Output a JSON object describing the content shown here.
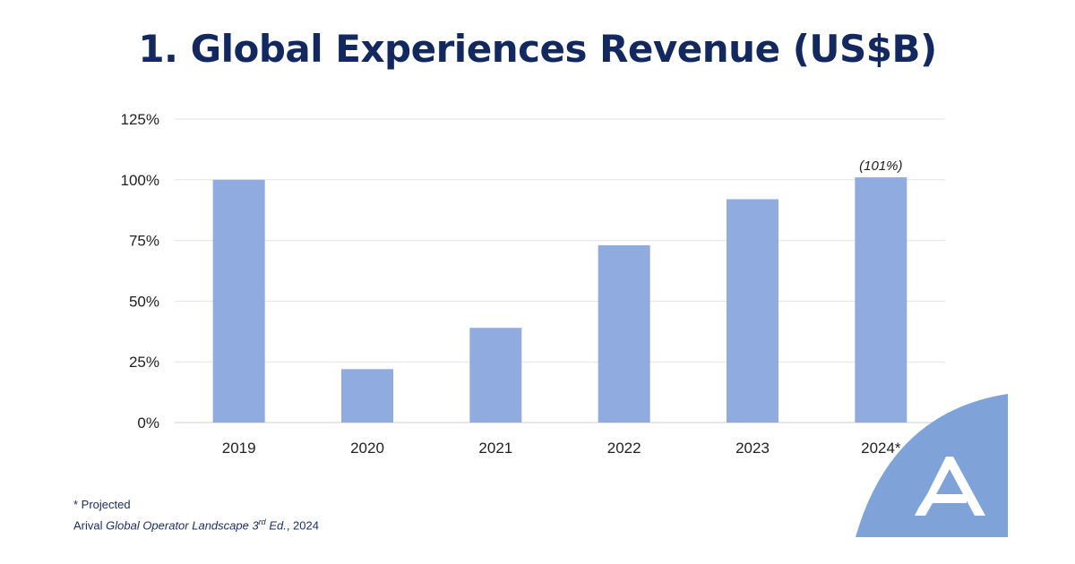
{
  "title": "1. Global Experiences Revenue (US$B)",
  "chart_data": {
    "type": "bar",
    "categories": [
      "2019",
      "2020",
      "2021",
      "2022",
      "2023",
      "2024*"
    ],
    "values": [
      100,
      22,
      39,
      73,
      92,
      101
    ],
    "ylim": [
      0,
      125
    ],
    "yticks": [
      "0%",
      "25%",
      "50%",
      "75%",
      "100%",
      "125%"
    ],
    "ytick_values": [
      0,
      25,
      50,
      75,
      100,
      125
    ],
    "y_unit": "%",
    "grid": true,
    "legend": "none",
    "bar_color": "#8fabdf",
    "annotations": [
      {
        "category": "2024*",
        "text": "(101%)"
      }
    ]
  },
  "footnotes": {
    "projected": "* Projected",
    "source_prefix": "Arival ",
    "source_title": "Global Operator Landscape 3",
    "source_sup": "rd",
    "source_title_end": " Ed.",
    "source_suffix": ", 2024"
  },
  "colors": {
    "title": "#12285e",
    "bar": "#8fabdf",
    "grid": "#e3e3e3",
    "axis": "#cfcfcf",
    "logo_bg": "#7fa3d8",
    "logo_mark": "#ffffff"
  },
  "logo": {
    "icon": "arival-logo-icon"
  }
}
